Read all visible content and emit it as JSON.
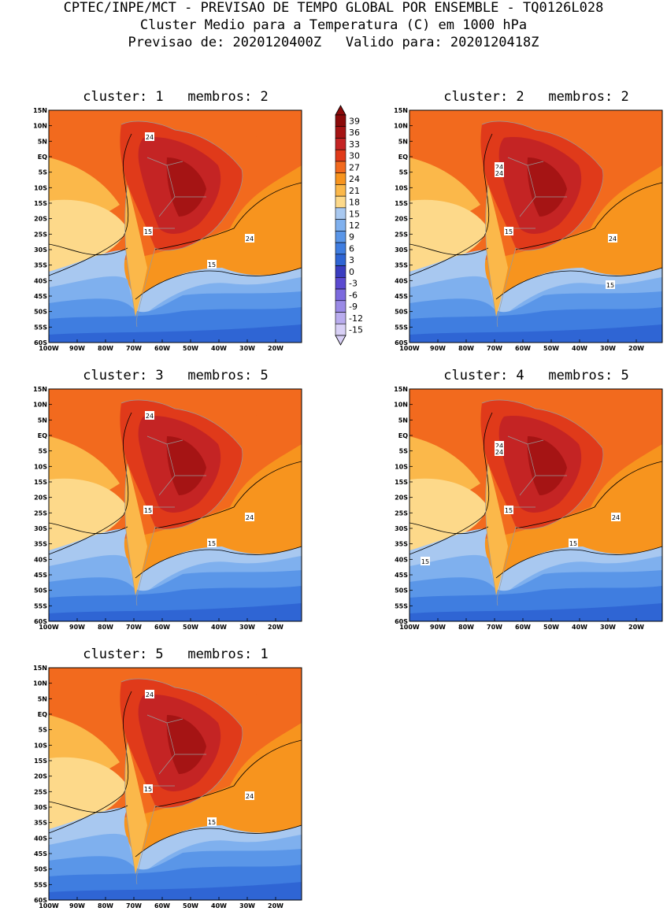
{
  "header": {
    "line1": "CPTEC/INPE/MCT - PREVISAO DE TEMPO GLOBAL POR ENSEMBLE - TQ0126L028",
    "line2": "Cluster Medio para a Temperatura (C) em 1000 hPa",
    "line3": "Previsao de: 2020120400Z   Valido para: 2020120418Z"
  },
  "axes": {
    "lat_labels": [
      "15N",
      "10N",
      "5N",
      "EQ",
      "5S",
      "10S",
      "15S",
      "20S",
      "25S",
      "30S",
      "35S",
      "40S",
      "45S",
      "50S",
      "55S",
      "60S"
    ],
    "lon_labels": [
      "100W",
      "90W",
      "80W",
      "70W",
      "60W",
      "50W",
      "40W",
      "30W",
      "20W"
    ]
  },
  "colorbar": {
    "labels": [
      "39",
      "36",
      "33",
      "30",
      "27",
      "24",
      "21",
      "18",
      "15",
      "12",
      "9",
      "6",
      "3",
      "0",
      "-3",
      "-6",
      "-9",
      "-12",
      "-15"
    ],
    "colors": [
      "#8b0a0a",
      "#a51414",
      "#c42424",
      "#e03a1a",
      "#f26a1e",
      "#f7941e",
      "#fbb84a",
      "#fdd98a",
      "#a8c8f0",
      "#7fb0ee",
      "#5a96e8",
      "#3f7de0",
      "#2f65d4",
      "#3a3dc0",
      "#5b4ad0",
      "#7c6ade",
      "#9a8ae6",
      "#b9acee",
      "#d8d0f6"
    ]
  },
  "clusters": [
    {
      "title": "cluster: 1   membros: 2",
      "labels": [
        "24",
        "15",
        "24",
        "15"
      ]
    },
    {
      "title": "cluster: 2   membros: 2",
      "labels": [
        "24",
        "24",
        "15",
        "24",
        "15"
      ]
    },
    {
      "title": "cluster: 3   membros: 5",
      "labels": [
        "24",
        "15",
        "24",
        "15"
      ]
    },
    {
      "title": "cluster: 4   membros: 5",
      "labels": [
        "24",
        "24",
        "15",
        "24",
        "15",
        "15"
      ]
    },
    {
      "title": "cluster: 5   membros: 1",
      "labels": [
        "24",
        "15",
        "24",
        "15"
      ]
    }
  ]
}
